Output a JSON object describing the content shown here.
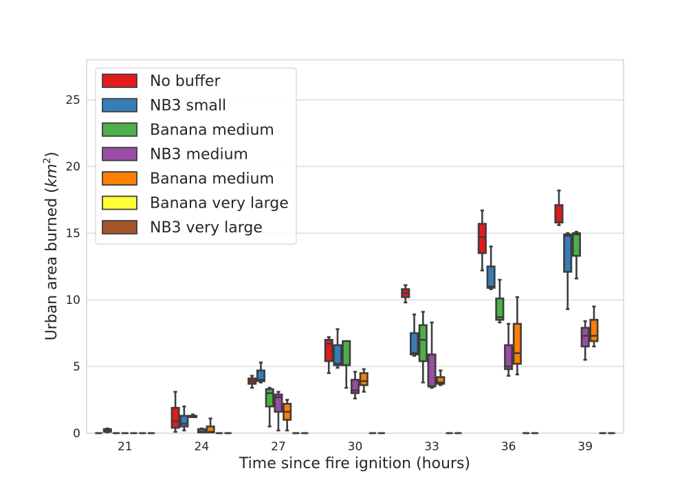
{
  "chart_data": {
    "type": "box",
    "xlabel": "Time since fire ignition (hours)",
    "ylabel_main": "Urban area burned (",
    "ylabel_unit": "km",
    "ylabel_exp": "2",
    "ylabel_end": ")",
    "categories": [
      "21",
      "24",
      "27",
      "30",
      "33",
      "36",
      "39"
    ],
    "ylim": [
      0,
      28
    ],
    "yticks": [
      0,
      5,
      10,
      15,
      20,
      25
    ],
    "grid": true,
    "legend_position": "top-left",
    "series": [
      {
        "name": "No buffer",
        "color": "#e41a1c",
        "boxes": [
          {
            "min": 0,
            "q1": 0,
            "median": 0,
            "q3": 0,
            "max": 0
          },
          {
            "min": 0.1,
            "q1": 0.4,
            "median": 0.9,
            "q3": 1.9,
            "max": 3.1
          },
          {
            "min": 3.4,
            "q1": 3.7,
            "median": 3.9,
            "q3": 4.1,
            "max": 4.3
          },
          {
            "min": 4.5,
            "q1": 5.4,
            "median": 6.7,
            "q3": 7.0,
            "max": 7.2
          },
          {
            "min": 9.8,
            "q1": 10.2,
            "median": 10.5,
            "q3": 10.8,
            "max": 11.1
          },
          {
            "min": 12.2,
            "q1": 13.5,
            "median": 14.7,
            "q3": 15.7,
            "max": 16.7
          },
          {
            "min": 15.6,
            "q1": 15.8,
            "median": 15.8,
            "q3": 17.1,
            "max": 18.2
          }
        ]
      },
      {
        "name": "NB3 small",
        "color": "#377eb8",
        "boxes": [
          {
            "min": 0.05,
            "q1": 0.1,
            "median": 0.2,
            "q3": 0.3,
            "max": 0.35
          },
          {
            "min": 0.2,
            "q1": 0.5,
            "median": 0.7,
            "q3": 1.3,
            "max": 2.0
          },
          {
            "min": 3.8,
            "q1": 3.9,
            "median": 4.0,
            "q3": 4.7,
            "max": 5.3
          },
          {
            "min": 4.9,
            "q1": 5.1,
            "median": 5.2,
            "q3": 6.6,
            "max": 7.8
          },
          {
            "min": 5.8,
            "q1": 5.9,
            "median": 6.0,
            "q3": 7.5,
            "max": 8.9
          },
          {
            "min": 10.8,
            "q1": 10.9,
            "median": 11.0,
            "q3": 12.5,
            "max": 14.0
          },
          {
            "min": 9.3,
            "q1": 12.1,
            "median": 14.8,
            "q3": 14.9,
            "max": 15.0
          }
        ]
      },
      {
        "name": "Banana medium",
        "color": "#4daf4a",
        "boxes": [
          {
            "min": 0,
            "q1": 0,
            "median": 0,
            "q3": 0,
            "max": 0
          },
          {
            "min": 1.2,
            "q1": 1.2,
            "median": 1.3,
            "q3": 1.3,
            "max": 1.4
          },
          {
            "min": 0.5,
            "q1": 2.0,
            "median": 3.0,
            "q3": 3.3,
            "max": 3.4
          },
          {
            "min": 3.4,
            "q1": 5.1,
            "median": 6.9,
            "q3": 6.9,
            "max": 6.9
          },
          {
            "min": 3.8,
            "q1": 5.4,
            "median": 7.0,
            "q3": 8.1,
            "max": 9.1
          },
          {
            "min": 8.3,
            "q1": 8.5,
            "median": 8.7,
            "q3": 10.1,
            "max": 11.5
          },
          {
            "min": 11.6,
            "q1": 13.3,
            "median": 14.9,
            "q3": 15.0,
            "max": 15.1
          }
        ]
      },
      {
        "name": "NB3 medium",
        "color": "#984ea3",
        "boxes": [
          {
            "min": 0,
            "q1": 0,
            "median": 0,
            "q3": 0,
            "max": 0
          },
          {
            "min": 0.05,
            "q1": 0.05,
            "median": 0.1,
            "q3": 0.3,
            "max": 0.35
          },
          {
            "min": 0.2,
            "q1": 1.6,
            "median": 2.7,
            "q3": 2.9,
            "max": 3.1
          },
          {
            "min": 2.6,
            "q1": 3.0,
            "median": 3.2,
            "q3": 4.0,
            "max": 4.6
          },
          {
            "min": 3.4,
            "q1": 3.5,
            "median": 3.5,
            "q3": 5.9,
            "max": 8.3
          },
          {
            "min": 4.3,
            "q1": 4.8,
            "median": 5.0,
            "q3": 6.6,
            "max": 8.2
          },
          {
            "min": 5.5,
            "q1": 6.5,
            "median": 7.3,
            "q3": 7.9,
            "max": 8.4
          }
        ]
      },
      {
        "name": "Banana medium",
        "color": "#ff7f00",
        "boxes": [
          {
            "min": 0,
            "q1": 0,
            "median": 0,
            "q3": 0,
            "max": 0
          },
          {
            "min": 0.05,
            "q1": 0.05,
            "median": 0.1,
            "q3": 0.5,
            "max": 1.1
          },
          {
            "min": 0.2,
            "q1": 1.0,
            "median": 1.6,
            "q3": 2.2,
            "max": 2.5
          },
          {
            "min": 3.1,
            "q1": 3.6,
            "median": 3.9,
            "q3": 4.5,
            "max": 4.8
          },
          {
            "min": 3.6,
            "q1": 3.7,
            "median": 3.8,
            "q3": 4.2,
            "max": 4.7
          },
          {
            "min": 4.4,
            "q1": 5.2,
            "median": 6.0,
            "q3": 8.2,
            "max": 10.2
          },
          {
            "min": 6.5,
            "q1": 6.9,
            "median": 7.3,
            "q3": 8.5,
            "max": 9.5
          }
        ]
      },
      {
        "name": "Banana very large",
        "color": "#ffff33",
        "boxes": [
          {
            "min": 0,
            "q1": 0,
            "median": 0,
            "q3": 0,
            "max": 0
          },
          {
            "min": 0,
            "q1": 0,
            "median": 0,
            "q3": 0,
            "max": 0
          },
          {
            "min": 0,
            "q1": 0,
            "median": 0,
            "q3": 0,
            "max": 0
          },
          {
            "min": 0,
            "q1": 0,
            "median": 0,
            "q3": 0,
            "max": 0
          },
          {
            "min": 0,
            "q1": 0,
            "median": 0,
            "q3": 0,
            "max": 0
          },
          {
            "min": 0,
            "q1": 0,
            "median": 0,
            "q3": 0,
            "max": 0
          },
          {
            "min": 0,
            "q1": 0,
            "median": 0,
            "q3": 0,
            "max": 0
          }
        ]
      },
      {
        "name": "NB3 very large",
        "color": "#a65628",
        "boxes": [
          {
            "min": 0,
            "q1": 0,
            "median": 0,
            "q3": 0,
            "max": 0
          },
          {
            "min": 0,
            "q1": 0,
            "median": 0,
            "q3": 0,
            "max": 0
          },
          {
            "min": 0,
            "q1": 0,
            "median": 0,
            "q3": 0,
            "max": 0
          },
          {
            "min": 0,
            "q1": 0,
            "median": 0,
            "q3": 0,
            "max": 0
          },
          {
            "min": 0,
            "q1": 0,
            "median": 0,
            "q3": 0,
            "max": 0
          },
          {
            "min": 0,
            "q1": 0,
            "median": 0,
            "q3": 0,
            "max": 0
          },
          {
            "min": 0,
            "q1": 0,
            "median": 0,
            "q3": 0,
            "max": 0
          }
        ]
      }
    ]
  }
}
